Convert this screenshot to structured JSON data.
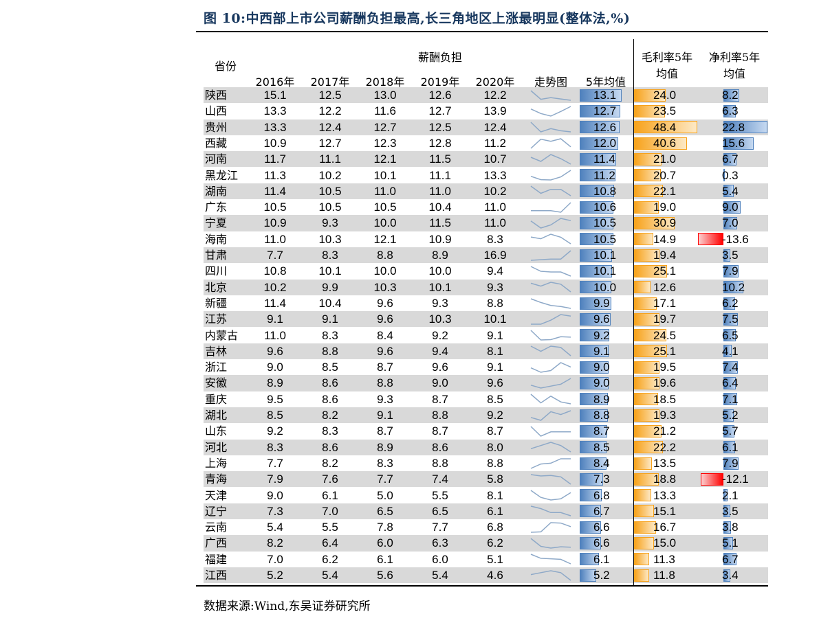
{
  "title": "图 10:中西部上市公司薪酬负担最高,长三角地区上涨最明显(整体法,%)",
  "headers": {
    "province": "省份",
    "group": "薪酬负担",
    "years": [
      "2016年",
      "2017年",
      "2018年",
      "2019年",
      "2020年"
    ],
    "trend": "走势图",
    "avg5": "5年均值",
    "gross_l1": "毛利率5年",
    "gross_l2": "均值",
    "net_l1": "净利率5年",
    "net_l2": "均值"
  },
  "colors": {
    "blue_bar": "#4f81bd",
    "orange_bar": "#f7a21b",
    "red_bar": "#ff0000",
    "title": "#17375e",
    "stripe": "#d9d9d9"
  },
  "footer": "数据来源:Wind,东吴证券研究所",
  "chart_data": {
    "type": "table",
    "columns": [
      "省份",
      "2016年",
      "2017年",
      "2018年",
      "2019年",
      "2020年",
      "走势图",
      "5年均值",
      "毛利率5年均值",
      "净利率5年均值"
    ],
    "rows": [
      {
        "p": "陕西",
        "v": [
          "15.1",
          "12.5",
          "13.0",
          "12.6",
          "12.2"
        ],
        "avg": "13.1",
        "gm": "24.0",
        "nm": "8.2"
      },
      {
        "p": "山西",
        "v": [
          "13.3",
          "12.2",
          "11.6",
          "12.7",
          "13.9"
        ],
        "avg": "12.7",
        "gm": "23.5",
        "nm": "6.3"
      },
      {
        "p": "贵州",
        "v": [
          "13.3",
          "12.4",
          "12.7",
          "12.5",
          "12.4"
        ],
        "avg": "12.6",
        "gm": "48.4",
        "nm": "22.8"
      },
      {
        "p": "西藏",
        "v": [
          "10.9",
          "12.7",
          "12.3",
          "12.8",
          "11.2"
        ],
        "avg": "12.0",
        "gm": "40.6",
        "nm": "15.6"
      },
      {
        "p": "河南",
        "v": [
          "11.7",
          "11.1",
          "12.1",
          "11.5",
          "10.7"
        ],
        "avg": "11.4",
        "gm": "21.0",
        "nm": "6.7"
      },
      {
        "p": "黑龙江",
        "v": [
          "11.3",
          "10.2",
          "10.1",
          "11.1",
          "13.3"
        ],
        "avg": "11.2",
        "gm": "20.7",
        "nm": "0.3"
      },
      {
        "p": "湖南",
        "v": [
          "11.4",
          "10.5",
          "11.0",
          "11.0",
          "10.2"
        ],
        "avg": "10.8",
        "gm": "22.1",
        "nm": "5.4"
      },
      {
        "p": "广东",
        "v": [
          "10.5",
          "10.5",
          "10.5",
          "10.4",
          "11.0"
        ],
        "avg": "10.6",
        "gm": "19.0",
        "nm": "9.0"
      },
      {
        "p": "宁夏",
        "v": [
          "10.9",
          "9.3",
          "10.0",
          "11.5",
          "11.0"
        ],
        "avg": "10.5",
        "gm": "30.9",
        "nm": "7.0"
      },
      {
        "p": "海南",
        "v": [
          "11.0",
          "10.3",
          "12.1",
          "10.9",
          "8.3"
        ],
        "avg": "10.5",
        "gm": "14.9",
        "nm": "-13.6"
      },
      {
        "p": "甘肃",
        "v": [
          "7.7",
          "8.3",
          "8.8",
          "8.9",
          "16.9"
        ],
        "avg": "10.1",
        "gm": "19.4",
        "nm": "3.5"
      },
      {
        "p": "四川",
        "v": [
          "10.8",
          "10.1",
          "10.0",
          "10.0",
          "9.4"
        ],
        "avg": "10.1",
        "gm": "25.1",
        "nm": "7.9"
      },
      {
        "p": "北京",
        "v": [
          "10.2",
          "9.9",
          "10.3",
          "10.1",
          "9.3"
        ],
        "avg": "10.0",
        "gm": "12.6",
        "nm": "10.2"
      },
      {
        "p": "新疆",
        "v": [
          "11.4",
          "10.4",
          "9.6",
          "9.3",
          "8.8"
        ],
        "avg": "9.9",
        "gm": "17.1",
        "nm": "6.2"
      },
      {
        "p": "江苏",
        "v": [
          "9.1",
          "9.1",
          "9.6",
          "10.3",
          "10.1"
        ],
        "avg": "9.6",
        "gm": "19.7",
        "nm": "7.5"
      },
      {
        "p": "内蒙古",
        "v": [
          "11.0",
          "8.3",
          "8.4",
          "9.2",
          "9.1"
        ],
        "avg": "9.2",
        "gm": "24.5",
        "nm": "6.5"
      },
      {
        "p": "吉林",
        "v": [
          "9.6",
          "8.8",
          "9.6",
          "9.4",
          "8.1"
        ],
        "avg": "9.1",
        "gm": "25.1",
        "nm": "4.1"
      },
      {
        "p": "浙江",
        "v": [
          "9.0",
          "8.5",
          "8.7",
          "9.6",
          "9.1"
        ],
        "avg": "9.0",
        "gm": "19.5",
        "nm": "7.4"
      },
      {
        "p": "安徽",
        "v": [
          "8.9",
          "8.6",
          "8.8",
          "9.0",
          "9.6"
        ],
        "avg": "9.0",
        "gm": "19.6",
        "nm": "6.4"
      },
      {
        "p": "重庆",
        "v": [
          "9.5",
          "8.6",
          "9.3",
          "8.7",
          "8.5"
        ],
        "avg": "8.9",
        "gm": "18.5",
        "nm": "7.1"
      },
      {
        "p": "湖北",
        "v": [
          "8.5",
          "8.2",
          "9.1",
          "8.8",
          "9.2"
        ],
        "avg": "8.8",
        "gm": "19.3",
        "nm": "5.2"
      },
      {
        "p": "山东",
        "v": [
          "9.2",
          "8.3",
          "8.7",
          "8.7",
          "8.7"
        ],
        "avg": "8.7",
        "gm": "21.2",
        "nm": "5.7"
      },
      {
        "p": "河北",
        "v": [
          "8.3",
          "8.6",
          "8.9",
          "8.6",
          "8.0"
        ],
        "avg": "8.5",
        "gm": "22.2",
        "nm": "6.1"
      },
      {
        "p": "上海",
        "v": [
          "7.7",
          "8.2",
          "8.3",
          "8.8",
          "8.8"
        ],
        "avg": "8.4",
        "gm": "13.5",
        "nm": "7.9"
      },
      {
        "p": "青海",
        "v": [
          "7.9",
          "7.6",
          "7.7",
          "7.4",
          "5.8"
        ],
        "avg": "7.3",
        "gm": "18.8",
        "nm": "-12.1"
      },
      {
        "p": "天津",
        "v": [
          "9.0",
          "6.1",
          "5.0",
          "5.5",
          "8.1"
        ],
        "avg": "6.8",
        "gm": "13.3",
        "nm": "2.1"
      },
      {
        "p": "辽宁",
        "v": [
          "7.3",
          "7.0",
          "6.5",
          "6.5",
          "6.1"
        ],
        "avg": "6.7",
        "gm": "15.1",
        "nm": "3.5"
      },
      {
        "p": "云南",
        "v": [
          "5.4",
          "5.5",
          "7.8",
          "7.7",
          "6.8"
        ],
        "avg": "6.6",
        "gm": "16.7",
        "nm": "3.8"
      },
      {
        "p": "广西",
        "v": [
          "8.2",
          "6.4",
          "6.0",
          "6.3",
          "6.2"
        ],
        "avg": "6.6",
        "gm": "15.0",
        "nm": "5.1"
      },
      {
        "p": "福建",
        "v": [
          "7.0",
          "6.2",
          "6.1",
          "6.0",
          "5.1"
        ],
        "avg": "6.1",
        "gm": "11.3",
        "nm": "6.7"
      },
      {
        "p": "江西",
        "v": [
          "5.2",
          "5.4",
          "5.6",
          "5.4",
          "4.6"
        ],
        "avg": "5.2",
        "gm": "11.8",
        "nm": "3.4"
      }
    ]
  }
}
